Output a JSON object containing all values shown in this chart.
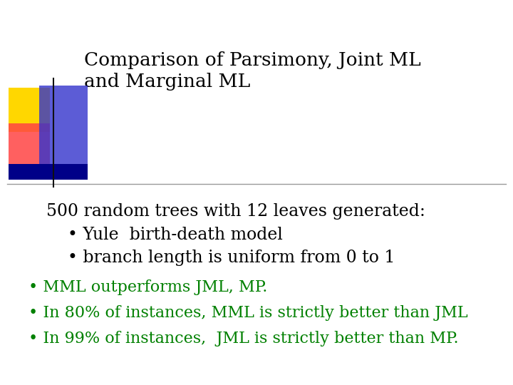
{
  "title_line1": "Comparison of Parsimony, Joint ML",
  "title_line2": "and Marginal ML",
  "title_color": "#000000",
  "title_fontsize": 19,
  "body_line1": "500 random trees with 12 leaves generated:",
  "bullet1": "Yule  birth-death model",
  "bullet2": " branch length is uniform from 0 to 1",
  "body_color": "#000000",
  "body_fontsize": 17,
  "green_bullet1": "MML outperforms JML, MP.",
  "green_bullet2": "In 80% of instances, MML is strictly better than JML",
  "green_bullet3": "In 99% of instances,  JML is strictly better than MP.",
  "green_color": "#008000",
  "green_fontsize": 16,
  "bg_color": "#ffffff",
  "deco_yellow": "#FFD700",
  "deco_red": "#FF4444",
  "deco_blue": "#3333CC",
  "deco_darkblue": "#000088",
  "line_color": "#999999"
}
